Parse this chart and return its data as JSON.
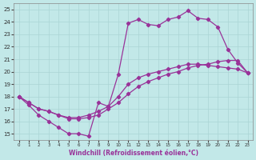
{
  "xlabel": "Windchill (Refroidissement éolien,°C)",
  "ylabel": "",
  "xlim": [
    -0.5,
    23.5
  ],
  "ylim": [
    14.5,
    25.5
  ],
  "xticks": [
    0,
    1,
    2,
    3,
    4,
    5,
    6,
    7,
    8,
    9,
    10,
    11,
    12,
    13,
    14,
    15,
    16,
    17,
    18,
    19,
    20,
    21,
    22,
    23
  ],
  "yticks": [
    15,
    16,
    17,
    18,
    19,
    20,
    21,
    22,
    23,
    24,
    25
  ],
  "bg_color": "#c2e8e8",
  "grid_color": "#aad4d4",
  "line_color": "#993399",
  "line1_x": [
    0,
    1,
    2,
    3,
    4,
    5,
    6,
    7,
    8,
    9,
    10,
    11,
    12,
    13,
    14,
    15,
    16,
    17,
    18,
    19,
    20,
    21,
    22,
    23
  ],
  "line1_y": [
    18.0,
    17.3,
    16.5,
    16.0,
    15.5,
    15.0,
    15.0,
    14.8,
    17.5,
    17.2,
    19.8,
    23.9,
    24.2,
    23.8,
    23.7,
    24.2,
    24.4,
    24.9,
    24.3,
    24.2,
    23.6,
    21.8,
    20.7,
    19.9
  ],
  "line2_x": [
    0,
    1,
    2,
    3,
    4,
    5,
    6,
    7,
    8,
    9,
    10,
    11,
    12,
    13,
    14,
    15,
    16,
    17,
    18,
    19,
    20,
    21,
    22,
    23
  ],
  "line2_y": [
    18.0,
    17.5,
    17.0,
    16.8,
    16.5,
    16.2,
    16.2,
    16.3,
    16.5,
    17.0,
    17.5,
    18.2,
    18.8,
    19.2,
    19.5,
    19.8,
    20.0,
    20.3,
    20.5,
    20.6,
    20.8,
    20.9,
    20.9,
    19.9
  ],
  "line3_x": [
    0,
    1,
    2,
    3,
    4,
    5,
    6,
    7,
    8,
    9,
    10,
    11,
    12,
    13,
    14,
    15,
    16,
    17,
    18,
    19,
    20,
    21,
    22,
    23
  ],
  "line3_y": [
    18.0,
    17.5,
    17.0,
    16.8,
    16.5,
    16.3,
    16.3,
    16.5,
    16.8,
    17.2,
    18.0,
    19.0,
    19.5,
    19.8,
    20.0,
    20.2,
    20.4,
    20.6,
    20.6,
    20.5,
    20.4,
    20.3,
    20.2,
    19.9
  ]
}
